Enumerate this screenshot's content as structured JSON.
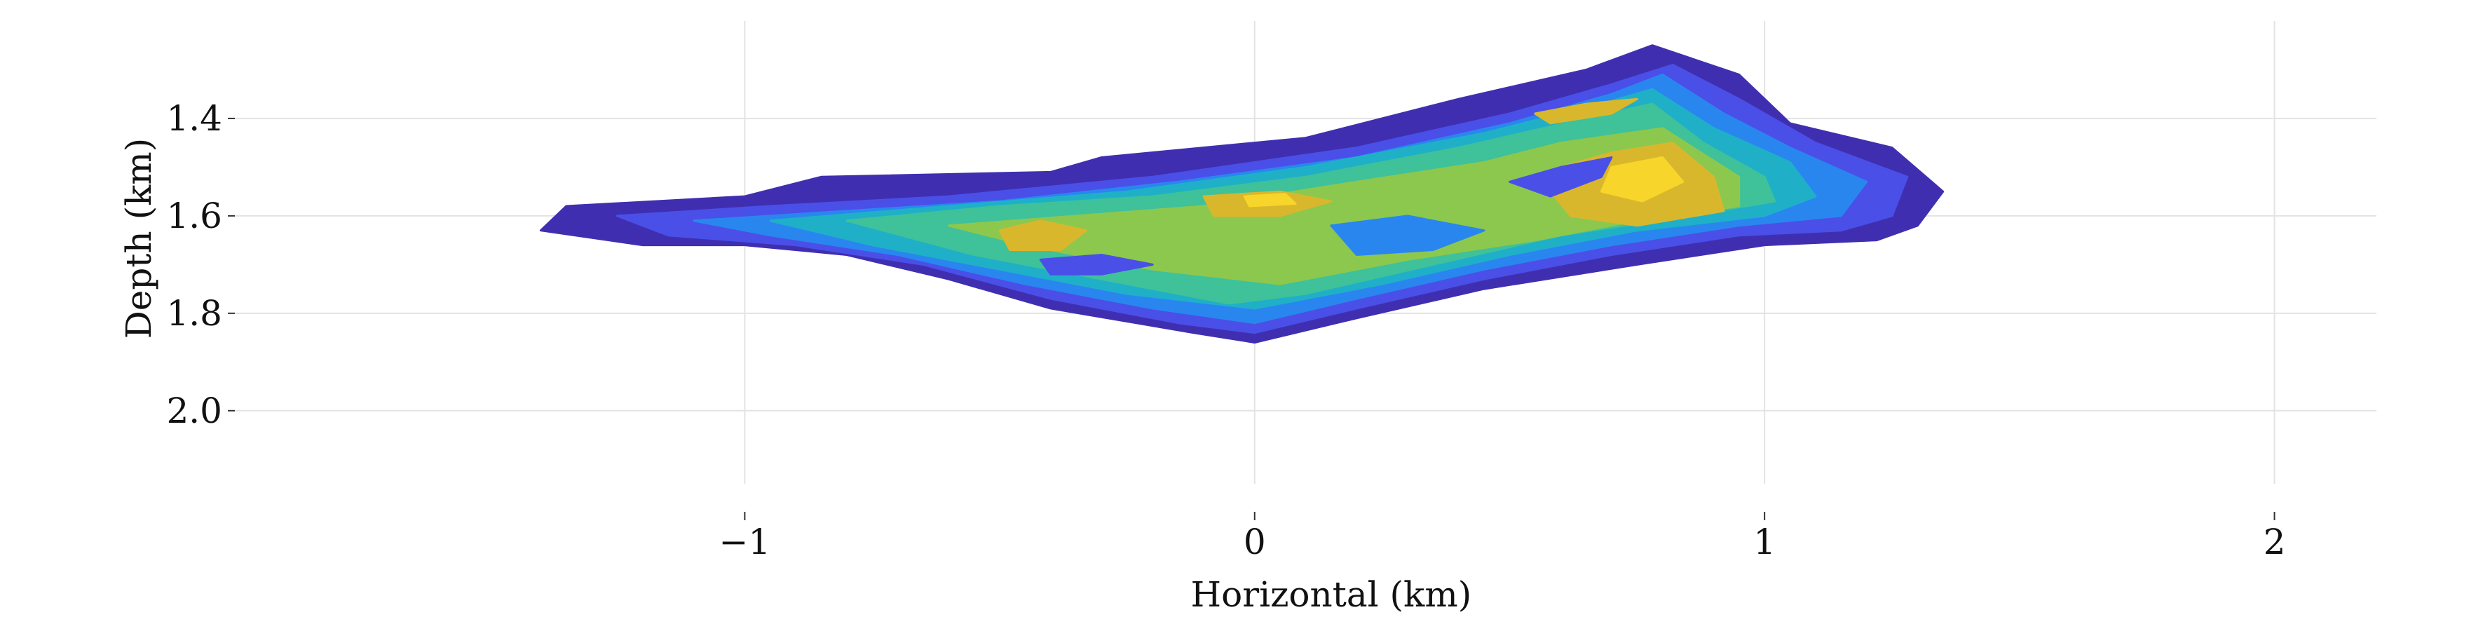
{
  "chart_data": {
    "type": "heatmap",
    "title": "",
    "xlabel": "Horizontal (km)",
    "ylabel": "Depth (km)",
    "xlim": [
      -2.0,
      2.2
    ],
    "ylim": [
      2.15,
      1.2
    ],
    "y_inverted": true,
    "x_ticks": [
      -1,
      0,
      1,
      2
    ],
    "x_tick_labels": [
      "−1",
      "0",
      "1",
      "2"
    ],
    "y_ticks": [
      1.4,
      1.6,
      1.8,
      2.0
    ],
    "y_tick_labels": [
      "1.4",
      "1.6",
      "1.8",
      "2.0"
    ],
    "grid": true,
    "colorbar": false,
    "legend": "none",
    "colormap": [
      "#3f2fb0",
      "#4a4fe8",
      "#2a86ef",
      "#1fb0c8",
      "#3fc19a",
      "#8cc84e",
      "#d9b72c",
      "#f7d52a"
    ],
    "levels": [
      {
        "level": 1,
        "color": "#3f2fb0",
        "polygon": [
          [
            -1.35,
            1.58
          ],
          [
            -1.0,
            1.56
          ],
          [
            -0.85,
            1.52
          ],
          [
            -0.4,
            1.51
          ],
          [
            -0.3,
            1.48
          ],
          [
            0.1,
            1.44
          ],
          [
            0.4,
            1.36
          ],
          [
            0.65,
            1.3
          ],
          [
            0.78,
            1.25
          ],
          [
            0.95,
            1.31
          ],
          [
            1.05,
            1.41
          ],
          [
            1.25,
            1.46
          ],
          [
            1.35,
            1.55
          ],
          [
            1.3,
            1.62
          ],
          [
            1.22,
            1.65
          ],
          [
            1.0,
            1.66
          ],
          [
            0.75,
            1.7
          ],
          [
            0.45,
            1.75
          ],
          [
            0.2,
            1.81
          ],
          [
            0.0,
            1.86
          ],
          [
            -0.12,
            1.84
          ],
          [
            -0.4,
            1.79
          ],
          [
            -0.6,
            1.73
          ],
          [
            -0.8,
            1.68
          ],
          [
            -1.0,
            1.66
          ],
          [
            -1.2,
            1.66
          ],
          [
            -1.4,
            1.63
          ]
        ]
      },
      {
        "level": 2,
        "color": "#4a4fe8",
        "polygon": [
          [
            -1.25,
            1.6
          ],
          [
            -0.95,
            1.58
          ],
          [
            -0.6,
            1.56
          ],
          [
            -0.2,
            1.52
          ],
          [
            0.2,
            1.46
          ],
          [
            0.5,
            1.39
          ],
          [
            0.7,
            1.33
          ],
          [
            0.82,
            1.29
          ],
          [
            0.95,
            1.36
          ],
          [
            1.1,
            1.45
          ],
          [
            1.28,
            1.52
          ],
          [
            1.25,
            1.6
          ],
          [
            1.15,
            1.63
          ],
          [
            0.95,
            1.64
          ],
          [
            0.7,
            1.68
          ],
          [
            0.45,
            1.73
          ],
          [
            0.2,
            1.79
          ],
          [
            0.0,
            1.84
          ],
          [
            -0.15,
            1.82
          ],
          [
            -0.4,
            1.77
          ],
          [
            -0.65,
            1.7
          ],
          [
            -0.9,
            1.66
          ],
          [
            -1.15,
            1.64
          ]
        ]
      },
      {
        "level": 3,
        "color": "#2a86ef",
        "polygon": [
          [
            -1.1,
            1.61
          ],
          [
            -0.8,
            1.59
          ],
          [
            -0.5,
            1.57
          ],
          [
            -0.15,
            1.53
          ],
          [
            0.2,
            1.48
          ],
          [
            0.5,
            1.41
          ],
          [
            0.7,
            1.35
          ],
          [
            0.8,
            1.31
          ],
          [
            0.92,
            1.39
          ],
          [
            1.05,
            1.46
          ],
          [
            1.2,
            1.53
          ],
          [
            1.15,
            1.6
          ],
          [
            0.95,
            1.62
          ],
          [
            0.7,
            1.66
          ],
          [
            0.45,
            1.71
          ],
          [
            0.2,
            1.77
          ],
          [
            0.0,
            1.82
          ],
          [
            -0.2,
            1.79
          ],
          [
            -0.45,
            1.74
          ],
          [
            -0.7,
            1.68
          ],
          [
            -0.95,
            1.64
          ]
        ]
      },
      {
        "level": 4,
        "color": "#1fb0c8",
        "polygon": [
          [
            -0.95,
            1.61
          ],
          [
            -0.6,
            1.58
          ],
          [
            -0.25,
            1.55
          ],
          [
            0.1,
            1.5
          ],
          [
            0.45,
            1.43
          ],
          [
            0.68,
            1.37
          ],
          [
            0.78,
            1.34
          ],
          [
            0.9,
            1.42
          ],
          [
            1.05,
            1.49
          ],
          [
            1.1,
            1.56
          ],
          [
            1.0,
            1.6
          ],
          [
            0.75,
            1.63
          ],
          [
            0.5,
            1.68
          ],
          [
            0.25,
            1.74
          ],
          [
            0.0,
            1.79
          ],
          [
            -0.25,
            1.76
          ],
          [
            -0.5,
            1.71
          ],
          [
            -0.75,
            1.66
          ]
        ]
      },
      {
        "level": 5,
        "color": "#3fc19a",
        "polygon": [
          [
            -0.8,
            1.61
          ],
          [
            -0.5,
            1.58
          ],
          [
            -0.2,
            1.56
          ],
          [
            0.1,
            1.52
          ],
          [
            0.4,
            1.46
          ],
          [
            0.65,
            1.4
          ],
          [
            0.78,
            1.37
          ],
          [
            0.88,
            1.45
          ],
          [
            1.0,
            1.52
          ],
          [
            1.02,
            1.57
          ],
          [
            0.85,
            1.6
          ],
          [
            0.6,
            1.64
          ],
          [
            0.35,
            1.7
          ],
          [
            0.1,
            1.76
          ],
          [
            -0.05,
            1.78
          ],
          [
            -0.3,
            1.73
          ],
          [
            -0.55,
            1.68
          ]
        ]
      },
      {
        "level": 6,
        "color": "#8cc84e",
        "polygon": [
          [
            -0.6,
            1.62
          ],
          [
            -0.35,
            1.6
          ],
          [
            -0.1,
            1.58
          ],
          [
            0.2,
            1.53
          ],
          [
            0.45,
            1.49
          ],
          [
            0.6,
            1.45
          ],
          [
            0.8,
            1.42
          ],
          [
            0.95,
            1.52
          ],
          [
            0.95,
            1.58
          ],
          [
            0.75,
            1.61
          ],
          [
            0.55,
            1.65
          ],
          [
            0.3,
            1.69
          ],
          [
            0.05,
            1.74
          ],
          [
            -0.2,
            1.71
          ],
          [
            -0.45,
            1.66
          ]
        ]
      },
      {
        "level": 7,
        "color": "#d9b72c",
        "polygon": [
          [
            0.6,
            1.5
          ],
          [
            0.7,
            1.47
          ],
          [
            0.82,
            1.45
          ],
          [
            0.9,
            1.52
          ],
          [
            0.92,
            1.59
          ],
          [
            0.75,
            1.62
          ],
          [
            0.62,
            1.6
          ],
          [
            0.58,
            1.55
          ]
        ]
      },
      {
        "level": 7,
        "color": "#d9b72c",
        "polygon": [
          [
            -0.5,
            1.63
          ],
          [
            -0.42,
            1.61
          ],
          [
            -0.33,
            1.63
          ],
          [
            -0.38,
            1.67
          ],
          [
            -0.48,
            1.67
          ]
        ]
      },
      {
        "level": 7,
        "color": "#d9b72c",
        "polygon": [
          [
            -0.1,
            1.56
          ],
          [
            0.05,
            1.55
          ],
          [
            0.15,
            1.57
          ],
          [
            0.05,
            1.6
          ],
          [
            -0.08,
            1.6
          ]
        ]
      },
      {
        "level": 7,
        "color": "#d9b72c",
        "polygon": [
          [
            0.55,
            1.39
          ],
          [
            0.65,
            1.37
          ],
          [
            0.75,
            1.36
          ],
          [
            0.7,
            1.39
          ],
          [
            0.58,
            1.41
          ]
        ]
      },
      {
        "level": 8,
        "color": "#f7d52a",
        "polygon": [
          [
            0.7,
            1.5
          ],
          [
            0.8,
            1.48
          ],
          [
            0.84,
            1.53
          ],
          [
            0.76,
            1.57
          ],
          [
            0.68,
            1.55
          ]
        ]
      },
      {
        "level": 8,
        "color": "#f7d52a",
        "polygon": [
          [
            -0.02,
            1.56
          ],
          [
            0.06,
            1.555
          ],
          [
            0.08,
            1.575
          ],
          [
            -0.01,
            1.58
          ]
        ]
      },
      {
        "level": 2,
        "color": "#4a4fe8",
        "polygon": [
          [
            0.5,
            1.53
          ],
          [
            0.6,
            1.5
          ],
          [
            0.7,
            1.48
          ],
          [
            0.68,
            1.52
          ],
          [
            0.58,
            1.56
          ]
        ]
      },
      {
        "level": 2,
        "color": "#4a4fe8",
        "polygon": [
          [
            -0.42,
            1.69
          ],
          [
            -0.3,
            1.68
          ],
          [
            -0.2,
            1.7
          ],
          [
            -0.3,
            1.72
          ],
          [
            -0.4,
            1.72
          ]
        ]
      },
      {
        "level": 3,
        "color": "#2a86ef",
        "polygon": [
          [
            0.15,
            1.62
          ],
          [
            0.3,
            1.6
          ],
          [
            0.45,
            1.63
          ],
          [
            0.35,
            1.67
          ],
          [
            0.2,
            1.68
          ]
        ]
      }
    ]
  }
}
